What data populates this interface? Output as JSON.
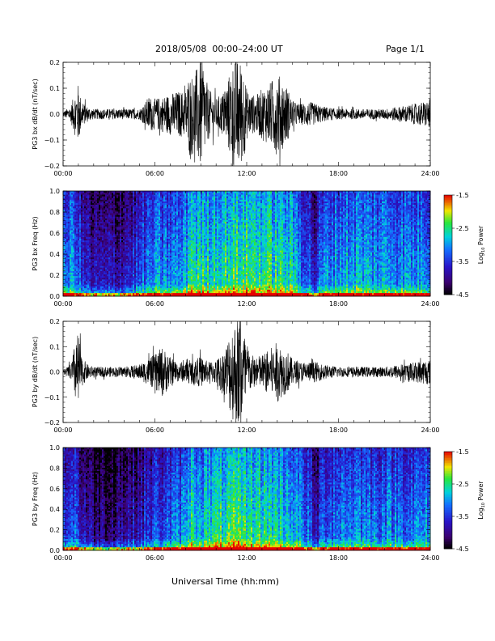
{
  "header": {
    "title": "2018/05/08  00:00–24:00 UT",
    "page": "Page 1/1"
  },
  "x_title": "Universal Time (hh:mm)",
  "colorbar_title_1": "Log",
  "colorbar_title_2": "Power",
  "colorbar_ticks": [
    "-1.5",
    "-2.5",
    "-3.5",
    "-4.5"
  ],
  "colors": {
    "line": "#000000",
    "background": "#ffffff"
  },
  "chart_data": [
    {
      "type": "line",
      "ylabel": "PG3 bx dB/dt (nT/sec)",
      "xticks": [
        "00:00",
        "06:00",
        "12:00",
        "18:00",
        "24:00"
      ],
      "yticks": [
        "0.2",
        "0.1",
        "0.0",
        "−0.1",
        "−0.2"
      ],
      "ylim": [
        -0.2,
        0.2
      ],
      "xlim_hours": [
        0,
        24
      ],
      "envelope": {
        "hours": [
          0,
          0.5,
          0.8,
          1.0,
          1.2,
          1.6,
          2,
          3,
          4,
          5,
          5.3,
          5.6,
          6,
          6.5,
          7,
          7.5,
          8,
          8.2,
          8.6,
          9,
          9.5,
          10,
          10.5,
          11,
          11.2,
          11.5,
          11.8,
          12,
          12.3,
          12.6,
          13,
          13.5,
          14,
          14.3,
          14.7,
          15,
          15.5,
          16,
          16.5,
          17,
          18,
          19,
          20,
          21,
          22,
          23,
          23.7,
          24
        ],
        "amplitude": [
          0.01,
          0.03,
          0.09,
          0.12,
          0.05,
          0.03,
          0.02,
          0.02,
          0.02,
          0.02,
          0.04,
          0.07,
          0.06,
          0.07,
          0.08,
          0.09,
          0.09,
          0.15,
          0.16,
          0.22,
          0.1,
          0.06,
          0.09,
          0.18,
          0.22,
          0.22,
          0.18,
          0.1,
          0.08,
          0.07,
          0.1,
          0.12,
          0.16,
          0.14,
          0.1,
          0.05,
          0.04,
          0.05,
          0.04,
          0.03,
          0.02,
          0.02,
          0.02,
          0.02,
          0.03,
          0.04,
          0.05,
          0.06
        ]
      }
    },
    {
      "type": "heatmap",
      "ylabel": "PG3 bx Freq (Hz)",
      "xticks": [
        "00:00",
        "06:00",
        "12:00",
        "18:00",
        "24:00"
      ],
      "yticks": [
        "1.0",
        "0.8",
        "0.6",
        "0.4",
        "0.2",
        "0.0"
      ],
      "ylim": [
        0,
        1.0
      ],
      "zlim": [
        -4.5,
        -1.5
      ],
      "zlabel": "Log Power",
      "activity": {
        "hours": [
          0,
          0.8,
          1.2,
          2,
          3,
          4,
          5,
          6,
          7,
          8,
          8.3,
          9,
          10,
          11,
          12,
          13,
          14,
          15,
          16,
          16.5,
          17,
          18,
          19,
          20,
          21,
          22,
          23,
          24
        ],
        "level": [
          0.45,
          0.55,
          0.35,
          0.25,
          0.25,
          0.3,
          0.4,
          0.5,
          0.5,
          0.55,
          0.72,
          0.65,
          0.68,
          0.7,
          0.72,
          0.7,
          0.68,
          0.62,
          0.45,
          0.3,
          0.5,
          0.55,
          0.58,
          0.55,
          0.55,
          0.55,
          0.52,
          0.55
        ]
      }
    },
    {
      "type": "line",
      "ylabel": "PG3 by dB/dt (nT/sec)",
      "xticks": [
        "00:00",
        "06:00",
        "12:00",
        "18:00",
        "24:00"
      ],
      "yticks": [
        "0.2",
        "0.1",
        "0.0",
        "−0.1",
        "−0.2"
      ],
      "ylim": [
        -0.2,
        0.2
      ],
      "xlim_hours": [
        0,
        24
      ],
      "envelope": {
        "hours": [
          0,
          0.5,
          0.8,
          1.0,
          1.2,
          1.6,
          2,
          3,
          4,
          5,
          5.5,
          6,
          6.5,
          7,
          7.5,
          8,
          8.5,
          9,
          9.5,
          10,
          10.5,
          11,
          11.3,
          11.6,
          12,
          12.3,
          12.6,
          13,
          13.5,
          14,
          14.3,
          14.7,
          15,
          15.5,
          16,
          16.5,
          17,
          18,
          19,
          20,
          21,
          22,
          23,
          23.7,
          24
        ],
        "amplitude": [
          0.01,
          0.03,
          0.12,
          0.16,
          0.06,
          0.03,
          0.02,
          0.02,
          0.02,
          0.03,
          0.05,
          0.07,
          0.1,
          0.06,
          0.04,
          0.04,
          0.05,
          0.06,
          0.04,
          0.05,
          0.08,
          0.18,
          0.22,
          0.22,
          0.12,
          0.07,
          0.06,
          0.07,
          0.09,
          0.12,
          0.1,
          0.08,
          0.05,
          0.04,
          0.04,
          0.04,
          0.03,
          0.02,
          0.02,
          0.02,
          0.02,
          0.03,
          0.04,
          0.05,
          0.05
        ]
      }
    },
    {
      "type": "heatmap",
      "ylabel": "PG3 by Freq (Hz)",
      "xticks": [
        "00:00",
        "06:00",
        "12:00",
        "18:00",
        "24:00"
      ],
      "yticks": [
        "1.0",
        "0.8",
        "0.6",
        "0.4",
        "0.2",
        "0.0"
      ],
      "ylim": [
        0,
        1.0
      ],
      "zlim": [
        -4.5,
        -1.5
      ],
      "zlabel": "Log Power",
      "activity": {
        "hours": [
          0,
          0.8,
          1.2,
          2,
          3,
          4,
          5,
          6,
          7,
          8,
          8.3,
          9,
          10,
          11,
          12,
          13,
          14,
          15,
          16,
          16.5,
          17,
          18,
          19,
          20,
          21,
          22,
          23,
          24
        ],
        "level": [
          0.4,
          0.45,
          0.3,
          0.2,
          0.2,
          0.25,
          0.3,
          0.4,
          0.45,
          0.5,
          0.68,
          0.62,
          0.65,
          0.7,
          0.7,
          0.68,
          0.65,
          0.6,
          0.45,
          0.25,
          0.45,
          0.5,
          0.52,
          0.5,
          0.5,
          0.5,
          0.48,
          0.5
        ]
      }
    }
  ]
}
